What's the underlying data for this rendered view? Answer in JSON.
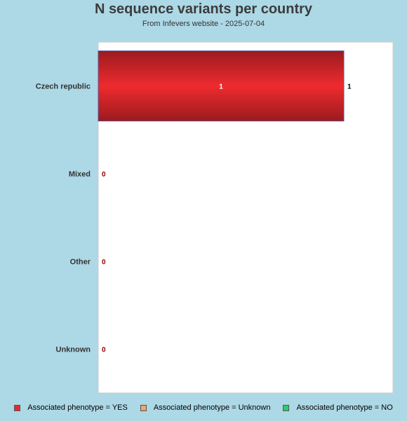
{
  "chart_data": {
    "type": "bar",
    "orientation": "horizontal",
    "title": "N sequence variants per country",
    "subtitle": "From Infevers website - 2025-07-04",
    "categories": [
      "Czech republic",
      "Mixed",
      "Other",
      "Unknown"
    ],
    "series": [
      {
        "name": "Associated phenotype = YES",
        "values": [
          1,
          0,
          0,
          0
        ],
        "color": "#e8282d"
      },
      {
        "name": "Associated phenotype = Unknown",
        "values": [
          0,
          0,
          0,
          0
        ],
        "color": "#f4a460"
      },
      {
        "name": "Associated phenotype = NO",
        "values": [
          0,
          0,
          0,
          0
        ],
        "color": "#2ecc71"
      }
    ],
    "totals": [
      1,
      0,
      0,
      0
    ],
    "xlim": [
      0,
      1.2
    ],
    "grid": false,
    "legend_position": "bottom"
  },
  "colors": {
    "background": "#add8e6",
    "plot_background": "#ffffff",
    "zero_label": "#8b0000",
    "bar_dark": "#9b1b1e",
    "bar_light": "#ee2b2f"
  }
}
